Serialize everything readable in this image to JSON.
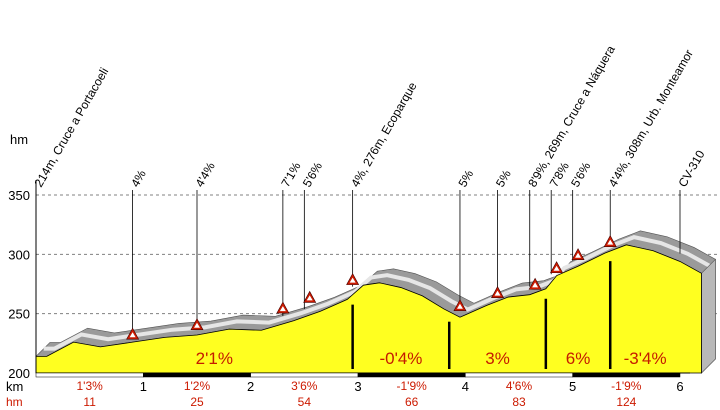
{
  "chart_data": {
    "type": "area",
    "title": "",
    "y_unit": "hm",
    "x_unit": "km",
    "hm_row_label": "hm",
    "ylim": [
      200,
      350
    ],
    "xlim": [
      0,
      6.2
    ],
    "yticks": [
      200,
      250,
      300,
      350
    ],
    "xticks": [
      1,
      2,
      3,
      4,
      5,
      6
    ],
    "profile": {
      "x": [
        0,
        0.1,
        0.35,
        0.6,
        0.9,
        1.2,
        1.5,
        1.8,
        2.1,
        2.4,
        2.65,
        2.9,
        3.05,
        3.2,
        3.4,
        3.6,
        3.8,
        3.95,
        4.0,
        4.2,
        4.4,
        4.6,
        4.75,
        4.85,
        5.05,
        5.3,
        5.5,
        5.75,
        6.0,
        6.2
      ],
      "y": [
        214,
        214,
        226,
        222,
        226,
        230,
        232,
        237,
        236,
        244,
        252,
        262,
        274,
        276,
        272,
        265,
        254,
        247,
        249,
        257,
        264,
        266,
        271,
        282,
        290,
        301,
        308,
        303,
        294,
        284
      ]
    },
    "markers": [
      {
        "x": 0.9,
        "y": 231
      },
      {
        "x": 1.5,
        "y": 239
      },
      {
        "x": 2.3,
        "y": 253
      },
      {
        "x": 2.55,
        "y": 262
      },
      {
        "x": 2.95,
        "y": 277
      },
      {
        "x": 3.95,
        "y": 255
      },
      {
        "x": 4.3,
        "y": 266
      },
      {
        "x": 4.65,
        "y": 273
      },
      {
        "x": 4.85,
        "y": 287
      },
      {
        "x": 5.05,
        "y": 298
      },
      {
        "x": 5.35,
        "y": 309
      }
    ],
    "grade_labels": [
      {
        "x": 0.0,
        "text": "214m, Cruce a Portacoeli"
      },
      {
        "x": 0.9,
        "text": "4%"
      },
      {
        "x": 1.5,
        "text": "4'4%"
      },
      {
        "x": 2.3,
        "text": "7'1%"
      },
      {
        "x": 2.5,
        "text": "5'6%"
      },
      {
        "x": 2.95,
        "text": "4%, 276m, Ecoparque"
      },
      {
        "x": 3.95,
        "text": "5%"
      },
      {
        "x": 4.3,
        "text": "5%"
      },
      {
        "x": 4.6,
        "text": "8'9%, 269m, Cruce a Náquera"
      },
      {
        "x": 4.8,
        "text": "7'8%"
      },
      {
        "x": 5.0,
        "text": "5'6%"
      },
      {
        "x": 5.35,
        "text": "4'4%, 308m, Urb. Monteamor"
      },
      {
        "x": 6.0,
        "text": "CV-310"
      }
    ],
    "sections": [
      {
        "from": 0,
        "to": 2.95,
        "grade": "2'1%"
      },
      {
        "from": 2.95,
        "to": 3.85,
        "grade": "-0'4%"
      },
      {
        "from": 3.85,
        "to": 4.75,
        "grade": "3%"
      },
      {
        "from": 4.75,
        "to": 5.35,
        "grade": "6%"
      },
      {
        "from": 5.35,
        "to": 6.0,
        "grade": "-3'4%"
      }
    ],
    "km_segments": [
      {
        "pct": "1'3%",
        "hm": "11"
      },
      {
        "pct": "1'2%",
        "hm": "25"
      },
      {
        "pct": "3'6%",
        "hm": "54"
      },
      {
        "pct": "-1'9%",
        "hm": "66"
      },
      {
        "pct": "4'6%",
        "hm": "83"
      },
      {
        "pct": "-1'9%",
        "hm": "124"
      }
    ],
    "colors": {
      "fill": "#ffff20",
      "shadow": "#9a9a9a",
      "shadow_light": "#cfcfcf",
      "side": "#b8b8b8",
      "marker": "#cc1a00",
      "grade_text": "#c51b00",
      "grid": "#808080",
      "leader": "#000000"
    }
  }
}
